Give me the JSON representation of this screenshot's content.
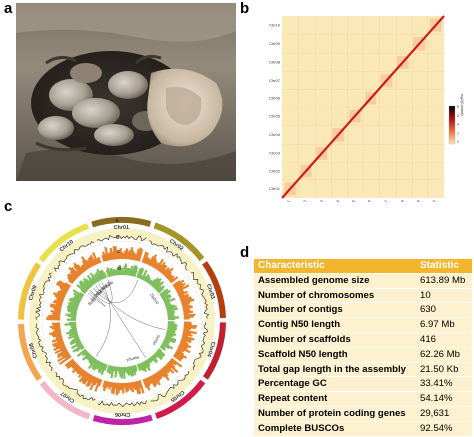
{
  "panels": {
    "a": "a",
    "b": "b",
    "c": "c",
    "d": "d"
  },
  "heatmap": {
    "chromosomes": [
      "Chr01",
      "Chr02",
      "Chr03",
      "Chr04",
      "Chr05",
      "Chr06",
      "Chr07",
      "Chr08",
      "Chr09",
      "Chr10"
    ],
    "legend_label": "log2(Contact)",
    "legend_ticks": [
      "8",
      "6",
      "4",
      "2",
      "0"
    ],
    "colors": {
      "background": "#fbe8b8",
      "diagonal": "#cc1c14",
      "grid": "#f5d79e"
    }
  },
  "circos": {
    "chromosomes": [
      {
        "name": "Chr01",
        "color": "#8a6a1d"
      },
      {
        "name": "Chr02",
        "color": "#a49624"
      },
      {
        "name": "Chr03",
        "color": "#b33f0e"
      },
      {
        "name": "Chr04",
        "color": "#c21f2f"
      },
      {
        "name": "Chr05",
        "color": "#d01a4a"
      },
      {
        "name": "Chr06",
        "color": "#c024a6"
      },
      {
        "name": "Chr07",
        "color": "#f2b7c6"
      },
      {
        "name": "Chr08",
        "color": "#f3a64d"
      },
      {
        "name": "Chr09",
        "color": "#f1c23c"
      },
      {
        "name": "Chr10",
        "color": "#e8e14b"
      }
    ],
    "track_labels": [
      "a",
      "b",
      "c",
      "d"
    ],
    "gene_labels": [
      "Bp83",
      "Slc25a6",
      "Sdc2",
      "Ccd88",
      "Sox27",
      "Dt9b"
    ],
    "inner_labels": [
      "Zfp140",
      "Scn5a",
      "Ramp1"
    ],
    "colors": {
      "gc": "#e8822d",
      "gene": "#7fbf5e",
      "ring": "#f7f2c5"
    }
  },
  "table": {
    "headers": [
      "Characteristic",
      "Statistic"
    ],
    "rows": [
      [
        "Assembled genome size",
        "613.89 Mb"
      ],
      [
        "Number of chromosomes",
        "10"
      ],
      [
        "Number of contigs",
        "630"
      ],
      [
        "Contig N50 length",
        "6.97 Mb"
      ],
      [
        "Number of scaffolds",
        "416"
      ],
      [
        "Scaffold N50 length",
        "62.26 Mb"
      ],
      [
        "Total gap length in the assembly",
        "21.50 Kb"
      ],
      [
        "Percentage GC",
        "33.41%"
      ],
      [
        "Repeat content",
        "54.14%"
      ],
      [
        "Number of protein coding genes",
        "29,631"
      ],
      [
        "Complete BUSCOs",
        "92.54%"
      ]
    ],
    "colors": {
      "header": "#f2b52b",
      "row": "#fdf1cf"
    }
  }
}
